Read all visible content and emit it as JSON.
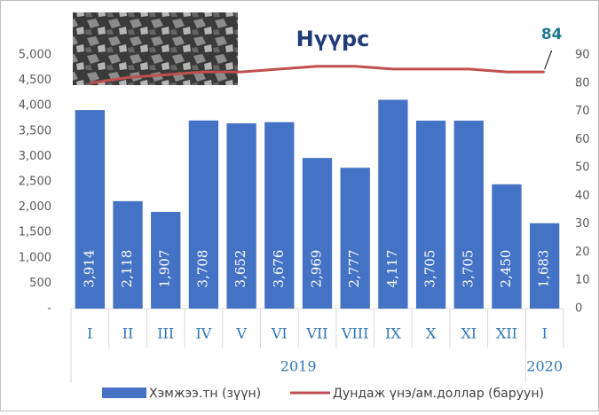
{
  "chart_data": {
    "type": "bar-line",
    "title": "Нүүрс",
    "categories": [
      "I",
      "II",
      "III",
      "IV",
      "V",
      "VI",
      "VII",
      "VIII",
      "IX",
      "X",
      "XI",
      "XII",
      "I"
    ],
    "years": [
      "2019",
      null,
      null,
      null,
      null,
      null,
      null,
      null,
      null,
      null,
      null,
      null,
      "2020"
    ],
    "series": [
      {
        "name": "Хэмжээ.тн (зүүн)",
        "type": "bar",
        "color": "#4472c4",
        "values": [
          3914,
          2118,
          1907,
          3708,
          3652,
          3676,
          2969,
          2777,
          4117,
          3705,
          3705,
          2450,
          1683
        ],
        "value_labels": [
          "3,914",
          "2,118",
          "1,907",
          "3,708",
          "3,652",
          "3,676",
          "2,969",
          "2,777",
          "4,117",
          "3,705",
          "3,705",
          "2,450",
          "1,683"
        ]
      },
      {
        "name": "Дундаж үнэ/ам.доллар (баруун)",
        "type": "line",
        "axis": "y2",
        "color": "#c0504d",
        "values": [
          80,
          82,
          83,
          84,
          84,
          85,
          86,
          86,
          85,
          85,
          85,
          84,
          84
        ],
        "value_labels": [
          null,
          null,
          null,
          null,
          null,
          null,
          null,
          null,
          null,
          null,
          null,
          null,
          "84"
        ]
      }
    ],
    "ylim": [
      0,
      5000
    ],
    "yticks": [
      {
        "value": 0,
        "label": "-"
      },
      500,
      {
        "value": 1000,
        "label": "1,000"
      },
      {
        "value": 1500,
        "label": "1,500"
      },
      {
        "value": 2000,
        "label": "2,000"
      },
      {
        "value": 2500,
        "label": "2,500"
      },
      {
        "value": 3000,
        "label": "3,000"
      },
      {
        "value": 3500,
        "label": "3,500"
      },
      {
        "value": 4000,
        "label": "4,000"
      },
      {
        "value": 4500,
        "label": "4,500"
      },
      {
        "value": 5000,
        "label": "5,000"
      }
    ],
    "y2lim": [
      0,
      90
    ],
    "y2ticks": [
      0,
      10,
      20,
      30,
      40,
      50,
      60,
      70,
      80,
      90
    ],
    "grid": false
  }
}
